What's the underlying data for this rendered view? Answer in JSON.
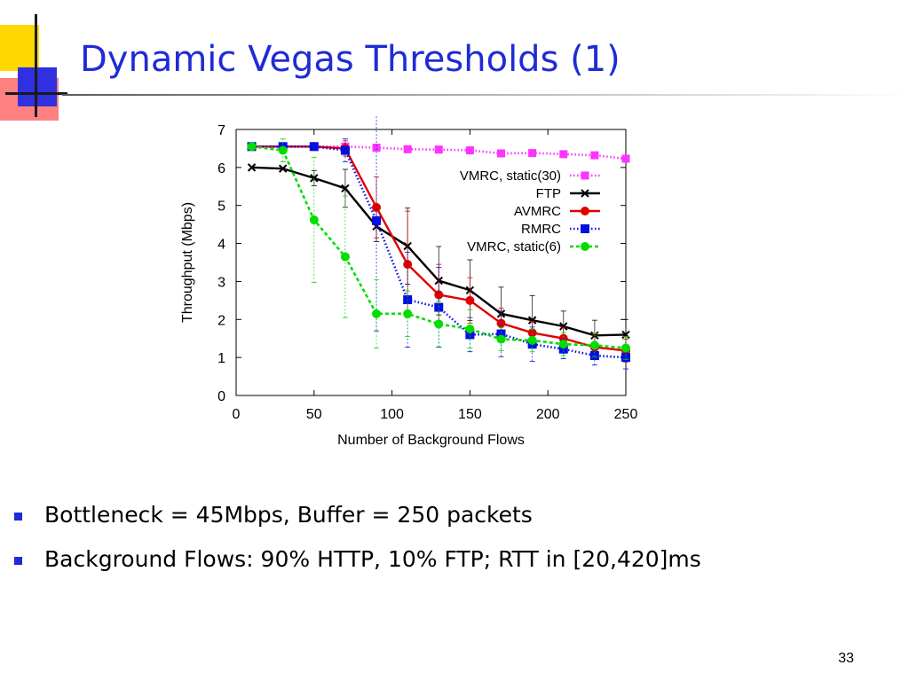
{
  "slide": {
    "title": "Dynamic Vegas Thresholds (1)",
    "bullets": [
      "Bottleneck = 45Mbps, Buffer = 250 packets",
      "Background Flows: 90% HTTP, 10% FTP; RTT in [20,420]ms"
    ],
    "page_number": "33",
    "accent_color": "#1f2bd6"
  },
  "chart_data": {
    "type": "line",
    "title": "",
    "xlabel": "Number of Background Flows",
    "ylabel": "Throughput (Mbps)",
    "xlim": [
      0,
      250
    ],
    "ylim": [
      0,
      7
    ],
    "xticks": [
      0,
      50,
      100,
      150,
      200,
      250
    ],
    "yticks": [
      0,
      1,
      2,
      3,
      4,
      5,
      6,
      7
    ],
    "grid": false,
    "legend_position": "top-right",
    "series": [
      {
        "name": "VMRC, static(30)",
        "color": "#ff33ff",
        "marker": "square",
        "line": "dotted",
        "x": [
          10,
          30,
          50,
          70,
          90,
          110,
          130,
          150,
          170,
          190,
          210,
          230,
          250
        ],
        "y": [
          6.55,
          6.55,
          6.55,
          6.55,
          6.52,
          6.48,
          6.47,
          6.45,
          6.37,
          6.38,
          6.35,
          6.32,
          6.23
        ],
        "err": [
          0,
          0,
          0,
          0,
          0,
          0,
          0,
          0,
          0,
          0,
          0,
          0,
          0
        ]
      },
      {
        "name": "FTP",
        "color": "#000000",
        "marker": "cross",
        "line": "solid",
        "x": [
          10,
          30,
          50,
          70,
          90,
          110,
          130,
          150,
          170,
          190,
          210,
          230,
          250
        ],
        "y": [
          6.0,
          5.97,
          5.72,
          5.45,
          4.45,
          3.93,
          3.02,
          2.77,
          2.15,
          1.98,
          1.82,
          1.58,
          1.6
        ],
        "err": [
          0,
          0,
          0.2,
          0.5,
          0.4,
          1.0,
          0.9,
          0.8,
          0.7,
          0.65,
          0.4,
          0.4,
          0.4
        ]
      },
      {
        "name": "AVMRC",
        "color": "#e00000",
        "marker": "circle",
        "line": "solid",
        "x": [
          10,
          30,
          50,
          70,
          90,
          110,
          130,
          150,
          170,
          190,
          210,
          230,
          250
        ],
        "y": [
          6.55,
          6.55,
          6.55,
          6.5,
          4.95,
          3.45,
          2.65,
          2.5,
          1.9,
          1.65,
          1.5,
          1.27,
          1.18
        ],
        "err": [
          0,
          0,
          0.1,
          0.2,
          0.8,
          1.4,
          0.8,
          0.6,
          0.4,
          0.3,
          0.3,
          0.3,
          0.3
        ]
      },
      {
        "name": "RMRC",
        "color": "#0010e0",
        "marker": "square-open",
        "line": "dotted",
        "x": [
          10,
          30,
          50,
          70,
          90,
          110,
          130,
          150,
          170,
          190,
          210,
          230,
          250
        ],
        "y": [
          6.55,
          6.55,
          6.55,
          6.45,
          4.6,
          2.52,
          2.32,
          1.6,
          1.62,
          1.35,
          1.22,
          1.05,
          1.0
        ],
        "err": [
          0,
          0,
          0.1,
          0.3,
          2.9,
          1.25,
          1.05,
          0.45,
          0.6,
          0.45,
          0.25,
          0.25,
          0.3
        ]
      },
      {
        "name": "VMRC, static(6)",
        "color": "#00dd00",
        "marker": "circle",
        "line": "dashed",
        "x": [
          10,
          30,
          50,
          70,
          90,
          110,
          130,
          150,
          170,
          190,
          210,
          230,
          250
        ],
        "y": [
          6.55,
          6.45,
          4.62,
          3.65,
          2.15,
          2.15,
          1.88,
          1.75,
          1.48,
          1.45,
          1.35,
          1.32,
          1.25
        ],
        "err": [
          0,
          0.3,
          1.65,
          1.6,
          0.9,
          0.6,
          0.6,
          0.5,
          0.3,
          0.3,
          0.3,
          0.3,
          0.3
        ]
      }
    ]
  }
}
